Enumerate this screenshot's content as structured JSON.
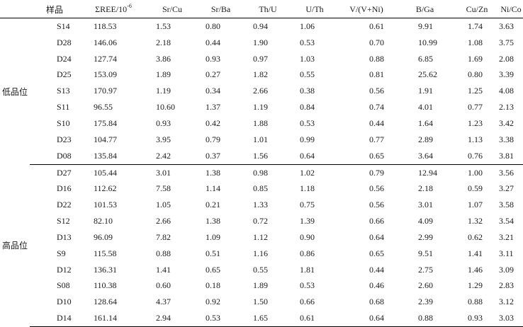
{
  "table": {
    "headers": {
      "group": "",
      "sample": "样品",
      "ree_base": "ΣREE/10",
      "ree_sup": "-6",
      "sr_cu": "Sr/Cu",
      "sr_ba": "Sr/Ba",
      "th_u": "Th/U",
      "u_th": "U/Th",
      "v_vni": "V/(V+Ni)",
      "b_ga": "B/Ga",
      "cu_zn": "Cu/Zn",
      "ni_co": "Ni/Co"
    },
    "groups": [
      {
        "label": "低品位",
        "rows": [
          [
            "S14",
            "118.53",
            "1.53",
            "0.80",
            "0.94",
            "1.06",
            "0.61",
            "9.91",
            "1.74",
            "3.63"
          ],
          [
            "D28",
            "146.06",
            "2.18",
            "0.44",
            "1.90",
            "0.53",
            "0.70",
            "10.99",
            "1.08",
            "3.75"
          ],
          [
            "D24",
            "127.74",
            "3.86",
            "0.93",
            "0.97",
            "1.03",
            "0.88",
            "6.85",
            "1.69",
            "2.08"
          ],
          [
            "D25",
            "153.09",
            "1.89",
            "0.27",
            "1.82",
            "0.55",
            "0.81",
            "25.62",
            "0.80",
            "3.39"
          ],
          [
            "S13",
            "170.97",
            "1.19",
            "0.34",
            "2.66",
            "0.38",
            "0.56",
            "1.91",
            "1.25",
            "4.08"
          ],
          [
            "S11",
            "96.55",
            "10.60",
            "1.37",
            "1.19",
            "0.84",
            "0.74",
            "4.01",
            "0.77",
            "2.13"
          ],
          [
            "S10",
            "175.84",
            "0.93",
            "0.42",
            "1.88",
            "0.53",
            "0.44",
            "1.64",
            "1.23",
            "3.42"
          ],
          [
            "D23",
            "104.77",
            "3.95",
            "0.79",
            "1.01",
            "0.99",
            "0.77",
            "2.89",
            "1.13",
            "3.38"
          ],
          [
            "D08",
            "135.84",
            "2.42",
            "0.37",
            "1.56",
            "0.64",
            "0.65",
            "3.64",
            "0.76",
            "3.81"
          ]
        ]
      },
      {
        "label": "高品位",
        "rows": [
          [
            "D27",
            "105.44",
            "3.01",
            "1.38",
            "0.98",
            "1.02",
            "0.79",
            "12.94",
            "1.00",
            "3.56"
          ],
          [
            "D16",
            "112.62",
            "7.58",
            "1.14",
            "0.85",
            "1.18",
            "0.56",
            "2.18",
            "0.59",
            "3.27"
          ],
          [
            "D22",
            "101.53",
            "1.05",
            "0.21",
            "1.33",
            "0.75",
            "0.56",
            "3.01",
            "1.07",
            "3.58"
          ],
          [
            "S12",
            "82.10",
            "2.66",
            "1.38",
            "0.72",
            "1.39",
            "0.66",
            "4.09",
            "1.32",
            "3.54"
          ],
          [
            "D13",
            "96.09",
            "7.82",
            "1.09",
            "1.12",
            "0.90",
            "0.64",
            "2.99",
            "0.62",
            "3.21"
          ],
          [
            "S9",
            "115.58",
            "0.88",
            "0.51",
            "1.16",
            "0.86",
            "0.65",
            "9.51",
            "1.41",
            "3.11"
          ],
          [
            "D12",
            "136.31",
            "1.41",
            "0.65",
            "0.55",
            "1.81",
            "0.44",
            "2.75",
            "1.46",
            "3.09"
          ],
          [
            "S08",
            "110.38",
            "0.60",
            "0.18",
            "1.89",
            "0.53",
            "0.46",
            "2.60",
            "1.29",
            "2.83"
          ],
          [
            "D10",
            "128.64",
            "4.37",
            "0.92",
            "1.50",
            "0.66",
            "0.68",
            "2.39",
            "0.88",
            "3.12"
          ],
          [
            "D14",
            "161.14",
            "2.94",
            "0.53",
            "1.65",
            "0.61",
            "0.64",
            "0.88",
            "0.93",
            "3.03"
          ]
        ]
      }
    ]
  }
}
